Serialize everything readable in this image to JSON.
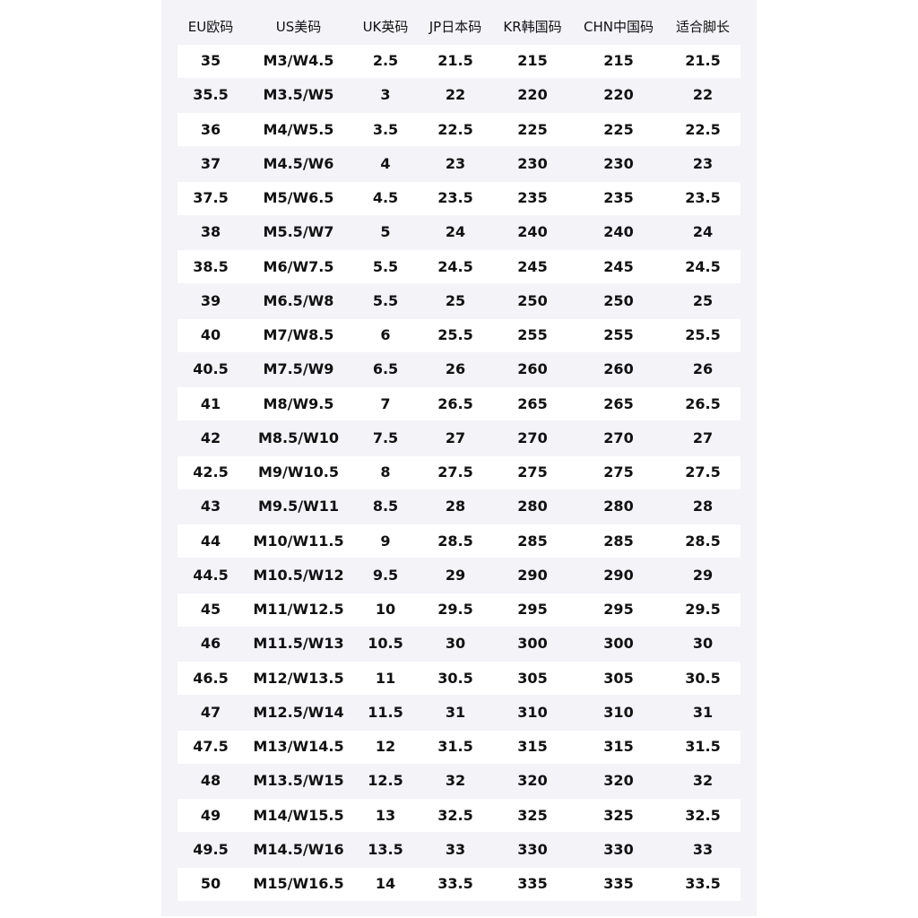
{
  "table": {
    "header": [
      "EU欧码",
      "US美码",
      "UK英码",
      "JP日本码",
      "KR韩国码",
      "CHN中国码",
      "适合脚长"
    ],
    "rows": [
      [
        "35",
        "M3/W4.5",
        "2.5",
        "21.5",
        "215",
        "215",
        "21.5"
      ],
      [
        "35.5",
        "M3.5/W5",
        "3",
        "22",
        "220",
        "220",
        "22"
      ],
      [
        "36",
        "M4/W5.5",
        "3.5",
        "22.5",
        "225",
        "225",
        "22.5"
      ],
      [
        "37",
        "M4.5/W6",
        "4",
        "23",
        "230",
        "230",
        "23"
      ],
      [
        "37.5",
        "M5/W6.5",
        "4.5",
        "23.5",
        "235",
        "235",
        "23.5"
      ],
      [
        "38",
        "M5.5/W7",
        "5",
        "24",
        "240",
        "240",
        "24"
      ],
      [
        "38.5",
        "M6/W7.5",
        "5.5",
        "24.5",
        "245",
        "245",
        "24.5"
      ],
      [
        "39",
        "M6.5/W8",
        "5.5",
        "25",
        "250",
        "250",
        "25"
      ],
      [
        "40",
        "M7/W8.5",
        "6",
        "25.5",
        "255",
        "255",
        "25.5"
      ],
      [
        "40.5",
        "M7.5/W9",
        "6.5",
        "26",
        "260",
        "260",
        "26"
      ],
      [
        "41",
        "M8/W9.5",
        "7",
        "26.5",
        "265",
        "265",
        "26.5"
      ],
      [
        "42",
        "M8.5/W10",
        "7.5",
        "27",
        "270",
        "270",
        "27"
      ],
      [
        "42.5",
        "M9/W10.5",
        "8",
        "27.5",
        "275",
        "275",
        "27.5"
      ],
      [
        "43",
        "M9.5/W11",
        "8.5",
        "28",
        "280",
        "280",
        "28"
      ],
      [
        "44",
        "M10/W11.5",
        "9",
        "28.5",
        "285",
        "285",
        "28.5"
      ],
      [
        "44.5",
        "M10.5/W12",
        "9.5",
        "29",
        "290",
        "290",
        "29"
      ],
      [
        "45",
        "M11/W12.5",
        "10",
        "29.5",
        "295",
        "295",
        "29.5"
      ],
      [
        "46",
        "M11.5/W13",
        "10.5",
        "30",
        "300",
        "300",
        "30"
      ],
      [
        "46.5",
        "M12/W13.5",
        "11",
        "30.5",
        "305",
        "305",
        "30.5"
      ],
      [
        "47",
        "M12.5/W14",
        "11.5",
        "31",
        "310",
        "310",
        "31"
      ],
      [
        "47.5",
        "M13/W14.5",
        "12",
        "31.5",
        "315",
        "315",
        "31.5"
      ],
      [
        "48",
        "M13.5/W15",
        "12.5",
        "32",
        "320",
        "320",
        "32"
      ],
      [
        "49",
        "M14/W15.5",
        "13",
        "32.5",
        "325",
        "325",
        "32.5"
      ],
      [
        "49.5",
        "M14.5/W16",
        "13.5",
        "33",
        "330",
        "330",
        "33"
      ],
      [
        "50",
        "M15/W16.5",
        "14",
        "33.5",
        "335",
        "335",
        "33.5"
      ]
    ]
  }
}
